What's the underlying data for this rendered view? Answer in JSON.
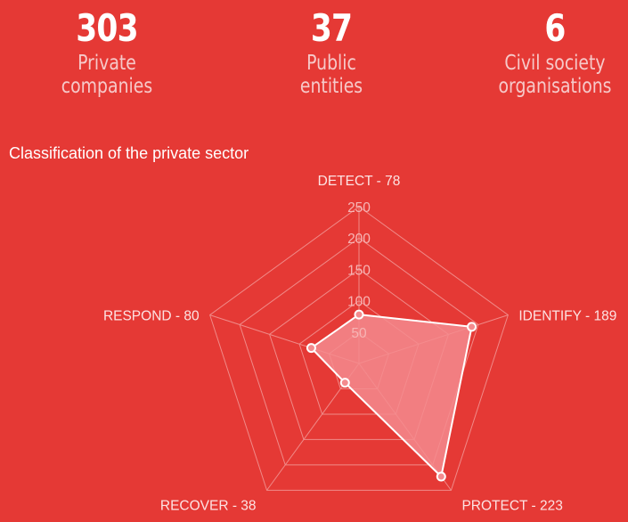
{
  "stats": [
    {
      "value": "303",
      "label_line1": "Private",
      "label_line2": "companies"
    },
    {
      "value": "37",
      "label_line1": "Public",
      "label_line2": "entities"
    },
    {
      "value": "6",
      "label_line1": "Civil society",
      "label_line2": "organisations"
    }
  ],
  "section_title": "Classification of the private sector",
  "colors": {
    "background": "#e53935",
    "grid": "#f08a88",
    "fill": "#f48b8e",
    "stroke": "#ffffff"
  },
  "chart_data": {
    "type": "radar",
    "categories": [
      "DETECT",
      "IDENTIFY",
      "PROTECT",
      "RECOVER",
      "RESPOND"
    ],
    "category_labels": [
      "DETECT - 78",
      "IDENTIFY - 189",
      "PROTECT - 223",
      "RECOVER - 38",
      "RESPOND - 80"
    ],
    "values": [
      78,
      189,
      223,
      38,
      80
    ],
    "ticks": [
      50,
      100,
      150,
      200,
      250
    ],
    "tick_labels": [
      "50",
      "100",
      "150",
      "200",
      "250"
    ],
    "range": [
      0,
      250
    ],
    "grid": true
  }
}
